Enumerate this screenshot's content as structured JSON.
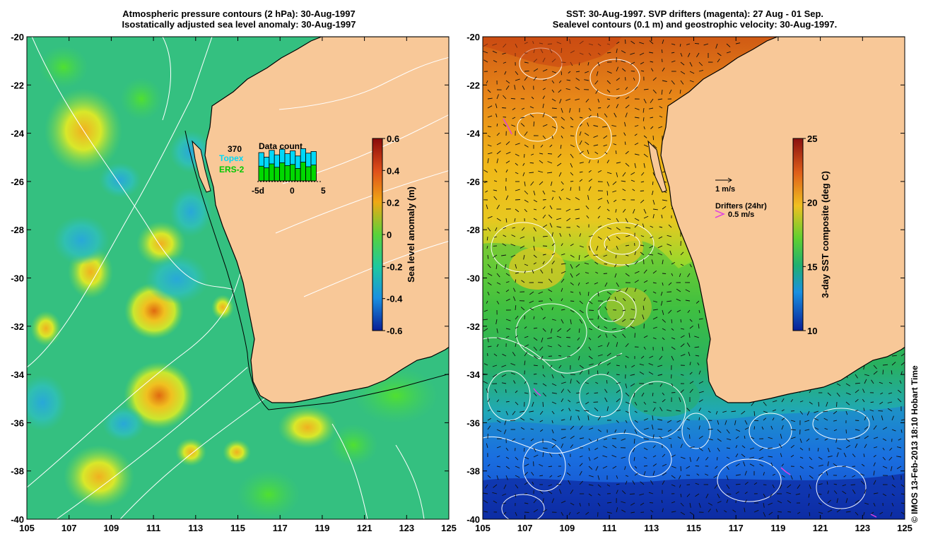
{
  "left_panel": {
    "title_line1": "Atmospheric pressure contours (2 hPa): 30-Aug-1997",
    "title_line2": "Isostatically adjusted sea level anomaly: 30-Aug-1997",
    "colorbar": {
      "label": "Sea level anomaly (m)",
      "ticks": [
        "0.6",
        "0.4",
        "0.2",
        "0",
        "-0.2",
        "-0.4",
        "-0.6"
      ],
      "colors": [
        "#8a0a0a",
        "#e0501a",
        "#f0a814",
        "#bde51e",
        "#1ec87a",
        "#1aa8e0",
        "#0a1e96"
      ]
    },
    "data_count": {
      "title": "Data count",
      "total": "370",
      "series": [
        {
          "name": "Topex",
          "color": "#00d8f8"
        },
        {
          "name": "ERS-2",
          "color": "#00d800"
        }
      ],
      "axis_labels": [
        "-5d",
        "0",
        "5"
      ],
      "bars_topex": [
        5,
        4.2,
        5.4,
        4.6,
        5.6,
        4.8,
        5.3,
        4.4,
        5.7,
        4.9,
        5.2
      ],
      "bars_ers2": [
        2.6,
        2.3,
        3,
        2.4,
        3.2,
        2.7,
        2.9,
        2.2,
        3.3,
        2.5,
        2.8
      ]
    }
  },
  "right_panel": {
    "title_line1": "SST: 30-Aug-1997. SVP drifters (magenta): 27 Aug - 01 Sep.",
    "title_line2": "Sealevel contours (0.1 m) and geostrophic velocity: 30-Aug-1997.",
    "colorbar": {
      "label": "3-day SST composite (deg C)",
      "ticks": [
        "25",
        "20",
        "15",
        "10"
      ],
      "colors": [
        "#8a1010",
        "#e0601a",
        "#f0c020",
        "#7cd830",
        "#20a860",
        "#1aa0e0",
        "#0a1e96"
      ]
    },
    "velocity_scale_label": "1 m/s",
    "drifters_label": "Drifters (24hr)",
    "drifter_scale_label": "0.5 m/s"
  },
  "axes": {
    "x_ticks": [
      "105",
      "107",
      "109",
      "111",
      "113",
      "115",
      "117",
      "119",
      "121",
      "123",
      "125"
    ],
    "y_ticks": [
      "-20",
      "-22",
      "-24",
      "-26",
      "-28",
      "-30",
      "-32",
      "-34",
      "-36",
      "-38",
      "-40"
    ]
  },
  "map_colors": {
    "land": "#f8c898",
    "ocean_sla": "#34c080",
    "coast": "#000000",
    "contours": "#ffffff",
    "drifters": "#e040e0"
  },
  "credit": "© IMOS 13-Feb-2013 18:10 Hobart Time"
}
